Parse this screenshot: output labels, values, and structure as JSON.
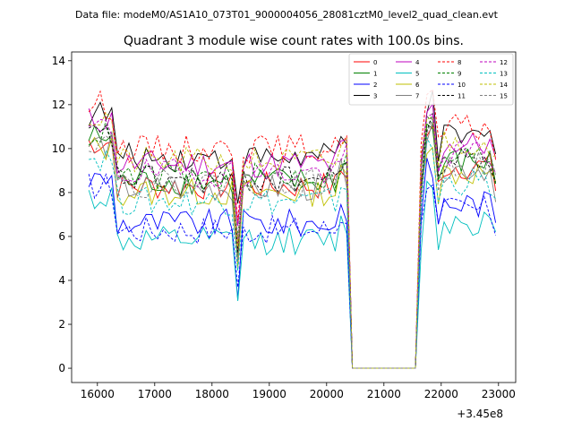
{
  "header": {
    "data_file": "Data file: modeM0/AS1A10_073T01_9000004056_28081cztM0_level2_quad_clean.evt"
  },
  "chart_data": {
    "type": "line",
    "title": "Quadrant 3 module wise count rates with 100.0s bins.",
    "xlabel": "",
    "ylabel": "",
    "x_offset_label": "+3.45e8",
    "xlim": [
      15550,
      23300
    ],
    "ylim": [
      -0.65,
      14.4
    ],
    "xticks": [
      16000,
      17000,
      18000,
      19000,
      20000,
      21000,
      22000,
      23000
    ],
    "yticks": [
      0,
      2,
      4,
      6,
      8,
      10,
      12,
      14
    ],
    "grid": false,
    "legend_position": "top-right",
    "x_range_shown": [
      15850,
      23000
    ],
    "gap": {
      "start": 20400,
      "end": 21600,
      "value": 0
    },
    "series": [
      {
        "name": "0",
        "color": "#ff0000",
        "dash": "solid",
        "base": 8.3
      },
      {
        "name": "1",
        "color": "#008000",
        "dash": "solid",
        "base": 8.5
      },
      {
        "name": "2",
        "color": "#0000ff",
        "dash": "solid",
        "base": 6.6
      },
      {
        "name": "3",
        "color": "#000000",
        "dash": "solid",
        "base": 9.6
      },
      {
        "name": "4",
        "color": "#bf00bf",
        "dash": "solid",
        "base": 9.3
      },
      {
        "name": "5",
        "color": "#00bfbf",
        "dash": "solid",
        "base": 5.8
      },
      {
        "name": "6",
        "color": "#bfbf00",
        "dash": "solid",
        "base": 8.0
      },
      {
        "name": "7",
        "color": "#808080",
        "dash": "solid",
        "base": 8.2
      },
      {
        "name": "8",
        "color": "#ff0000",
        "dash": "dashed",
        "base": 10.0
      },
      {
        "name": "9",
        "color": "#008000",
        "dash": "dashed",
        "base": 8.7
      },
      {
        "name": "10",
        "color": "#0000ff",
        "dash": "dashed",
        "base": 6.3
      },
      {
        "name": "11",
        "color": "#000000",
        "dash": "dashed",
        "base": 8.6
      },
      {
        "name": "12",
        "color": "#bf00bf",
        "dash": "dashed",
        "base": 8.9
      },
      {
        "name": "13",
        "color": "#00bfbf",
        "dash": "dashed",
        "base": 7.6
      },
      {
        "name": "14",
        "color": "#bfbf00",
        "dash": "dashed",
        "base": 9.4
      },
      {
        "name": "15",
        "color": "#808080",
        "dash": "dashed",
        "base": 8.4
      }
    ]
  }
}
